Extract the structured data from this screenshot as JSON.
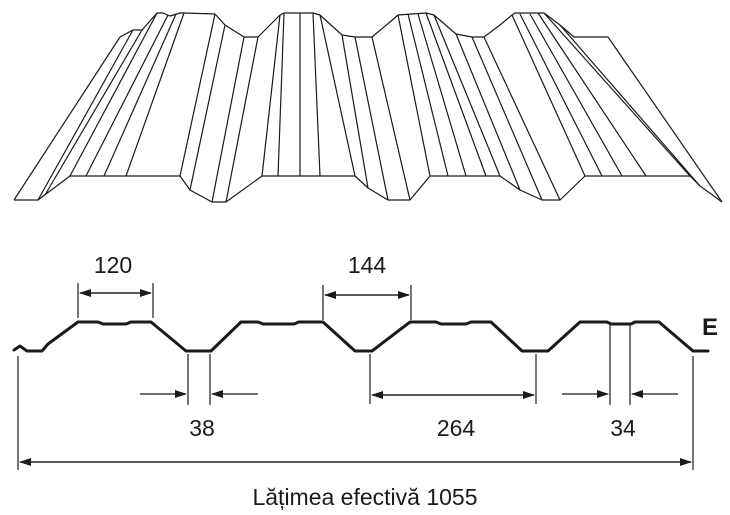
{
  "drawing": {
    "line_color": "#1a1a1a",
    "background": "#ffffff"
  },
  "dimensions": {
    "top_rib": "120",
    "middle_rib": "144",
    "valley_bottom": "38",
    "valley_span": "264",
    "last_valley": "34"
  },
  "edge_label": "E",
  "effective_width_label": "Lățimea efectivă 1055"
}
